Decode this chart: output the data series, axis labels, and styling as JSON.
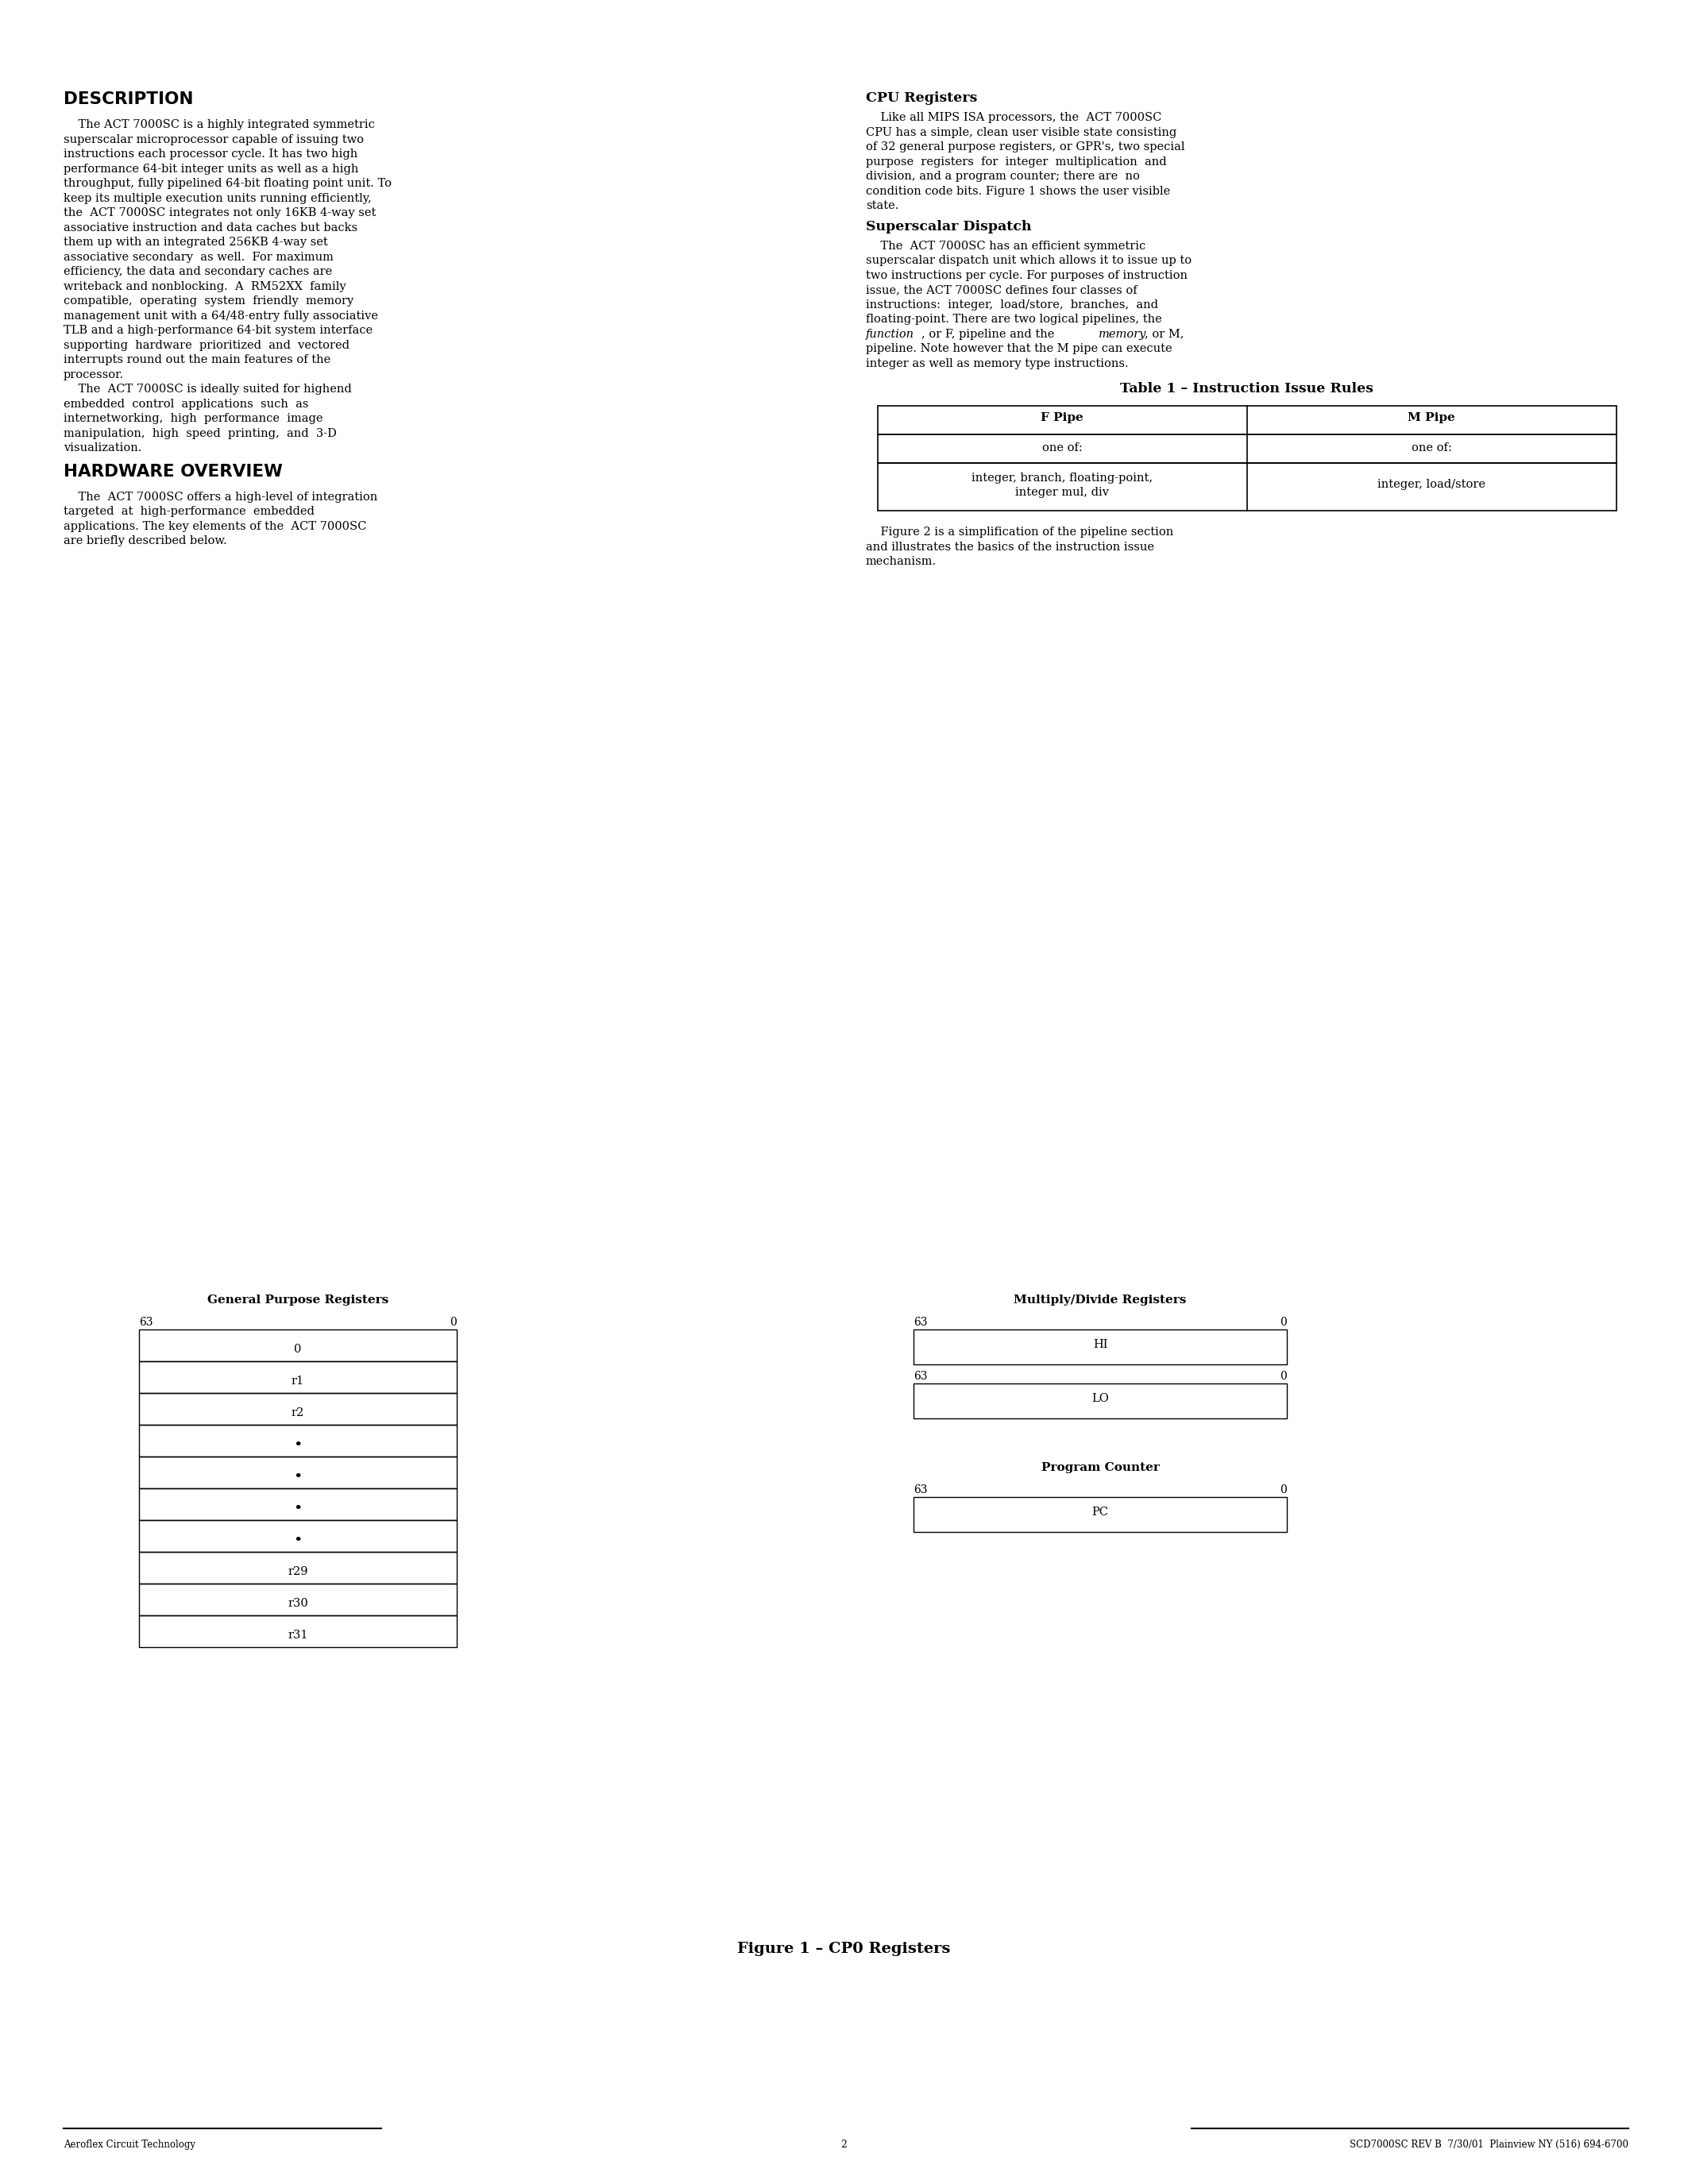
{
  "bg_color": "#ffffff",
  "footer_left": "Aeroflex Circuit Technology",
  "footer_center": "2",
  "footer_right": "SCD7000SC REV B  7/30/01  Plainview NY (516) 694-6700",
  "figure_caption": "Figure 1 – CP0 Registers",
  "table_title": "Table 1 – Instruction Issue Rules"
}
